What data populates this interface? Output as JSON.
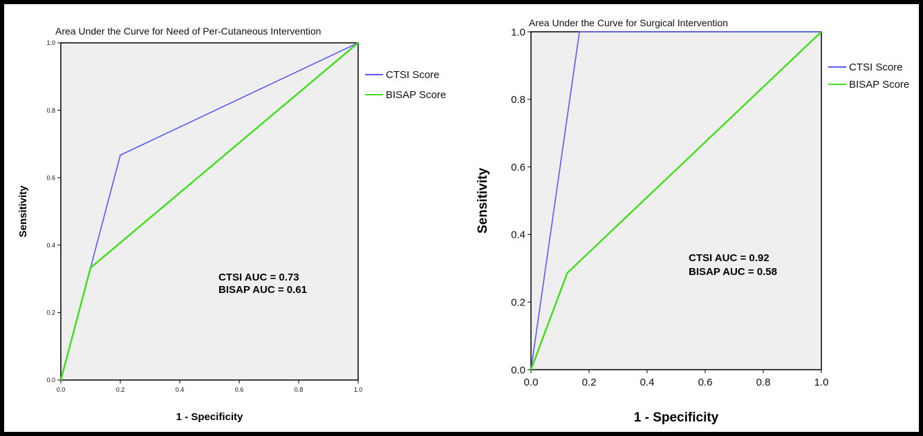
{
  "chart_data": [
    {
      "type": "line",
      "title": "Area Under the Curve for Need of Per-Cutaneous Intervention",
      "xlabel": "1 - Specificity",
      "ylabel": "Sensitivity",
      "xlim": [
        0,
        1
      ],
      "ylim": [
        0,
        1
      ],
      "xticks": [
        "0.0",
        "0.2",
        "0.4",
        "0.6",
        "0.8",
        "1.0"
      ],
      "yticks": [
        "0.0",
        "0.2",
        "0.4",
        "0.6",
        "0.8",
        "1.0"
      ],
      "legend_position": "right",
      "series": [
        {
          "name": "CTSI Score",
          "color": "#5a5af0",
          "x": [
            0,
            0.1,
            0.2,
            1.0
          ],
          "y": [
            0,
            0.333,
            0.667,
            1.0
          ]
        },
        {
          "name": "BISAP Score",
          "color": "#44dd22",
          "x": [
            0,
            0.1,
            1.0
          ],
          "y": [
            0,
            0.333,
            1.0
          ]
        }
      ],
      "annotations": [
        "CTSI AUC  = 0.73",
        "BISAP AUC = 0.61"
      ]
    },
    {
      "type": "line",
      "title": "Area Under the Curve for Surgical Intervention",
      "xlabel": "1 - Specificity",
      "ylabel": "Sensitivity",
      "xlim": [
        0,
        1
      ],
      "ylim": [
        0,
        1
      ],
      "xticks": [
        "0.0",
        "0.2",
        "0.4",
        "0.6",
        "0.8",
        "1.0"
      ],
      "yticks": [
        "0.0",
        "0.2",
        "0.4",
        "0.6",
        "0.8",
        "1.0"
      ],
      "legend_position": "right",
      "series": [
        {
          "name": "CTSI Score",
          "color": "#5a5af0",
          "x": [
            0,
            0.167,
            1.0
          ],
          "y": [
            0,
            1.0,
            1.0
          ]
        },
        {
          "name": "BISAP Score",
          "color": "#44dd22",
          "x": [
            0,
            0.125,
            1.0
          ],
          "y": [
            0,
            0.286,
            1.0
          ]
        }
      ],
      "annotations": [
        "CTSI AUC  = 0.92",
        "BISAP AUC = 0.58"
      ]
    }
  ]
}
